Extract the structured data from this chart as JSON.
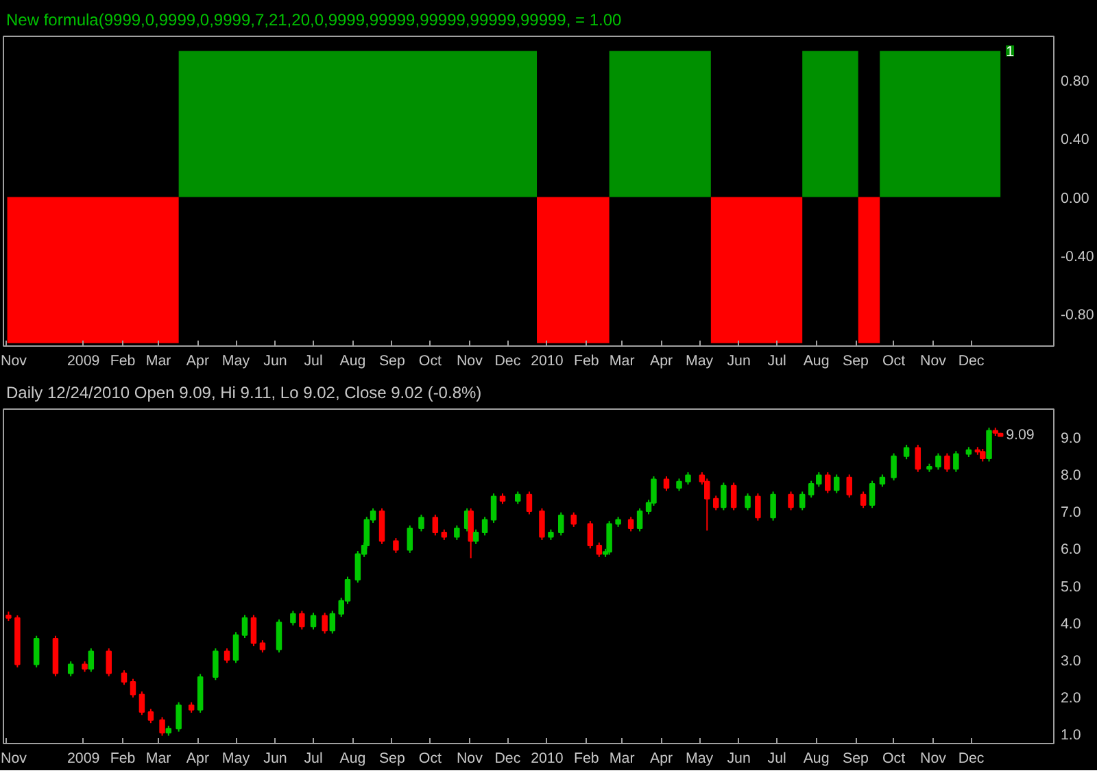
{
  "chart_data": [
    {
      "type": "area",
      "title": "New formula(9999,0,9999,0,9999,7,21,20,0,9999,99999,99999,99999,99999, = 1.00",
      "series": [
        {
          "color": "#009000",
          "x": [
            "2008-11-02",
            "2009-03-17",
            "2009-03-17",
            "2009-12-24",
            "2009-12-24",
            "2010-02-19",
            "2010-02-19",
            "2010-05-10",
            "2010-05-10",
            "2010-07-21",
            "2010-07-21",
            "2010-09-03",
            "2010-09-03",
            "2010-09-20",
            "2010-09-20",
            "2010-12-24"
          ],
          "values": [
            0,
            0,
            1,
            1,
            0,
            0,
            1,
            1,
            0,
            0,
            1,
            1,
            0,
            0,
            1,
            1
          ]
        },
        {
          "color": "#ff0000",
          "x": [
            "2008-11-02",
            "2009-03-17",
            "2009-03-17",
            "2009-12-24",
            "2009-12-24",
            "2010-02-19",
            "2010-02-19",
            "2010-05-10",
            "2010-05-10",
            "2010-07-21",
            "2010-07-21",
            "2010-09-03",
            "2010-09-03",
            "2010-09-20",
            "2010-09-20",
            "2010-12-24"
          ],
          "values": [
            -1,
            -1,
            0,
            0,
            -1,
            -1,
            0,
            0,
            -1,
            -1,
            0,
            0,
            -1,
            -1,
            0,
            0
          ]
        }
      ],
      "xlim": [
        "2008-10-30",
        "2011-02-04"
      ],
      "xticks": [
        {
          "value": "2008-11-01",
          "label": "Nov"
        },
        {
          "value": "2009-01-01",
          "label": "2009"
        },
        {
          "value": "2009-02-01",
          "label": "Feb"
        },
        {
          "value": "2009-03-01",
          "label": "Mar"
        },
        {
          "value": "2009-04-01",
          "label": "Apr"
        },
        {
          "value": "2009-05-01",
          "label": "May"
        },
        {
          "value": "2009-06-01",
          "label": "Jun"
        },
        {
          "value": "2009-07-01",
          "label": "Jul"
        },
        {
          "value": "2009-08-01",
          "label": "Aug"
        },
        {
          "value": "2009-09-01",
          "label": "Sep"
        },
        {
          "value": "2009-10-01",
          "label": "Oct"
        },
        {
          "value": "2009-11-01",
          "label": "Nov"
        },
        {
          "value": "2009-12-01",
          "label": "Dec"
        },
        {
          "value": "2010-01-01",
          "label": "2010"
        },
        {
          "value": "2010-02-01",
          "label": "Feb"
        },
        {
          "value": "2010-03-01",
          "label": "Mar"
        },
        {
          "value": "2010-04-01",
          "label": "Apr"
        },
        {
          "value": "2010-05-01",
          "label": "May"
        },
        {
          "value": "2010-06-01",
          "label": "Jun"
        },
        {
          "value": "2010-07-01",
          "label": "Jul"
        },
        {
          "value": "2010-08-01",
          "label": "Aug"
        },
        {
          "value": "2010-09-01",
          "label": "Sep"
        },
        {
          "value": "2010-10-01",
          "label": "Oct"
        },
        {
          "value": "2010-11-01",
          "label": "Nov"
        },
        {
          "value": "2010-12-01",
          "label": "Dec"
        }
      ],
      "ylim": [
        -1.02,
        1.1
      ],
      "yticks": [
        {
          "value": 0.8,
          "label": "0.80"
        },
        {
          "value": 0.4,
          "label": "0.40"
        },
        {
          "value": 0,
          "label": "0.00"
        },
        {
          "value": -0.4,
          "label": "-0.40"
        },
        {
          "value": -0.8,
          "label": "-0.80"
        }
      ],
      "annotations": [
        {
          "text": "1",
          "x": "2010-12-24",
          "y": 1
        }
      ],
      "grid": false
    },
    {
      "type": "candlestick",
      "title": "Daily 12/24/2010 Open 9.09, Hi 9.11, Lo 9.02, Close 9.02 (-0.8%)",
      "x": [
        "2008-11-03",
        "2008-11-10",
        "2008-11-25",
        "2008-12-10",
        "2008-12-22",
        "2009-01-02",
        "2009-01-07",
        "2009-01-21",
        "2009-02-02",
        "2009-02-09",
        "2009-02-16",
        "2009-02-23",
        "2009-03-04",
        "2009-03-09",
        "2009-03-17",
        "2009-03-27",
        "2009-04-03",
        "2009-04-15",
        "2009-04-24",
        "2009-05-01",
        "2009-05-08",
        "2009-05-15",
        "2009-05-22",
        "2009-06-04",
        "2009-06-15",
        "2009-06-22",
        "2009-07-01",
        "2009-07-10",
        "2009-07-16",
        "2009-07-23",
        "2009-07-28",
        "2009-08-05",
        "2009-08-10",
        "2009-08-12",
        "2009-08-17",
        "2009-08-24",
        "2009-09-04",
        "2009-09-15",
        "2009-09-24",
        "2009-10-05",
        "2009-10-12",
        "2009-10-22",
        "2009-10-30",
        "2009-11-02",
        "2009-11-06",
        "2009-11-13",
        "2009-11-20",
        "2009-11-27",
        "2009-12-09",
        "2009-12-18",
        "2009-12-28",
        "2010-01-04",
        "2010-01-12",
        "2010-01-22",
        "2010-02-04",
        "2010-02-11",
        "2010-02-16",
        "2010-02-19",
        "2010-02-26",
        "2010-03-08",
        "2010-03-15",
        "2010-03-22",
        "2010-03-26",
        "2010-04-05",
        "2010-04-15",
        "2010-04-22",
        "2010-05-03",
        "2010-05-07",
        "2010-05-14",
        "2010-05-20",
        "2010-05-28",
        "2010-06-08",
        "2010-06-16",
        "2010-06-28",
        "2010-07-12",
        "2010-07-21",
        "2010-07-28",
        "2010-08-03",
        "2010-08-10",
        "2010-08-17",
        "2010-08-27",
        "2010-09-07",
        "2010-09-14",
        "2010-09-22",
        "2010-10-01",
        "2010-10-11",
        "2010-10-20",
        "2010-10-29",
        "2010-11-05",
        "2010-11-12",
        "2010-11-19",
        "2010-11-29",
        "2010-12-06",
        "2010-12-10",
        "2010-12-15",
        "2010-12-20",
        "2010-12-24"
      ],
      "ohlc": [
        [
          4.2,
          4.3,
          4.05,
          4.13
        ],
        [
          4.13,
          4.2,
          2.8,
          2.88
        ],
        [
          2.88,
          3.65,
          2.8,
          3.57
        ],
        [
          3.57,
          3.65,
          2.56,
          2.64
        ],
        [
          2.64,
          2.96,
          2.56,
          2.88
        ],
        [
          2.88,
          2.96,
          2.68,
          2.76
        ],
        [
          2.76,
          3.31,
          2.68,
          3.23
        ],
        [
          3.23,
          3.31,
          2.56,
          2.64
        ],
        [
          2.64,
          2.72,
          2.33,
          2.41
        ],
        [
          2.41,
          2.49,
          1.99,
          2.07
        ],
        [
          2.07,
          2.15,
          1.52,
          1.6
        ],
        [
          1.6,
          1.68,
          1.3,
          1.38
        ],
        [
          1.38,
          1.46,
          0.96,
          1.04
        ],
        [
          1.04,
          1.23,
          0.96,
          1.15
        ],
        [
          1.15,
          1.86,
          1.07,
          1.78
        ],
        [
          1.78,
          1.86,
          1.58,
          1.66
        ],
        [
          1.66,
          2.62,
          1.58,
          2.54
        ],
        [
          2.54,
          3.31,
          2.46,
          3.23
        ],
        [
          3.23,
          3.31,
          2.92,
          3.0
        ],
        [
          3.0,
          3.75,
          2.92,
          3.67
        ],
        [
          3.67,
          4.21,
          3.59,
          4.13
        ],
        [
          4.13,
          4.21,
          3.37,
          3.45
        ],
        [
          3.45,
          3.53,
          3.2,
          3.28
        ],
        [
          3.28,
          4.09,
          3.2,
          4.01
        ],
        [
          4.01,
          4.32,
          3.93,
          4.24
        ],
        [
          4.24,
          4.32,
          3.82,
          3.9
        ],
        [
          3.9,
          4.27,
          3.82,
          4.19
        ],
        [
          4.19,
          4.27,
          3.71,
          3.79
        ],
        [
          3.79,
          4.32,
          3.71,
          4.24
        ],
        [
          4.24,
          4.67,
          4.16,
          4.59
        ],
        [
          4.59,
          5.24,
          4.51,
          5.16
        ],
        [
          5.16,
          5.93,
          5.08,
          5.85
        ],
        [
          5.85,
          6.16,
          5.77,
          6.08
        ],
        [
          6.08,
          6.85,
          6.0,
          6.77
        ],
        [
          6.77,
          7.08,
          6.69,
          7.0
        ],
        [
          7.0,
          7.08,
          6.12,
          6.2
        ],
        [
          6.2,
          6.28,
          5.88,
          5.96
        ],
        [
          5.96,
          6.62,
          5.88,
          6.54
        ],
        [
          6.54,
          6.91,
          6.46,
          6.83
        ],
        [
          6.83,
          6.91,
          6.35,
          6.43
        ],
        [
          6.43,
          6.51,
          6.23,
          6.31
        ],
        [
          6.31,
          6.62,
          6.23,
          6.54
        ],
        [
          6.54,
          7.08,
          6.46,
          7.0
        ],
        [
          7.0,
          7.08,
          5.74,
          6.2
        ],
        [
          6.2,
          6.51,
          6.12,
          6.43
        ],
        [
          6.43,
          6.85,
          6.35,
          6.77
        ],
        [
          6.77,
          7.48,
          6.69,
          7.4
        ],
        [
          7.4,
          7.48,
          7.2,
          7.28
        ],
        [
          7.28,
          7.53,
          7.2,
          7.45
        ],
        [
          7.45,
          7.53,
          6.92,
          7.0
        ],
        [
          7.0,
          7.08,
          6.23,
          6.31
        ],
        [
          6.31,
          6.51,
          6.23,
          6.43
        ],
        [
          6.43,
          6.97,
          6.35,
          6.89
        ],
        [
          6.89,
          6.97,
          6.58,
          6.66
        ],
        [
          6.66,
          6.74,
          6.0,
          6.08
        ],
        [
          6.08,
          6.16,
          5.77,
          5.85
        ],
        [
          5.85,
          5.99,
          5.77,
          5.91
        ],
        [
          5.91,
          6.74,
          5.83,
          6.66
        ],
        [
          6.66,
          6.85,
          6.58,
          6.77
        ],
        [
          6.77,
          6.85,
          6.46,
          6.54
        ],
        [
          6.54,
          7.08,
          6.46,
          7.0
        ],
        [
          7.0,
          7.31,
          6.92,
          7.23
        ],
        [
          7.23,
          7.94,
          7.15,
          7.86
        ],
        [
          7.86,
          7.94,
          7.55,
          7.63
        ],
        [
          7.63,
          7.88,
          7.55,
          7.8
        ],
        [
          7.8,
          8.05,
          7.72,
          7.97
        ],
        [
          7.97,
          8.05,
          7.72,
          7.8
        ],
        [
          7.8,
          7.88,
          6.48,
          7.34
        ],
        [
          7.34,
          7.42,
          7.03,
          7.11
        ],
        [
          7.11,
          7.77,
          7.03,
          7.69
        ],
        [
          7.69,
          7.77,
          7.03,
          7.11
        ],
        [
          7.11,
          7.48,
          7.03,
          7.4
        ],
        [
          7.4,
          7.48,
          6.75,
          6.83
        ],
        [
          6.83,
          7.53,
          6.75,
          7.45
        ],
        [
          7.45,
          7.53,
          7.03,
          7.11
        ],
        [
          7.11,
          7.53,
          7.03,
          7.45
        ],
        [
          7.45,
          7.82,
          7.37,
          7.74
        ],
        [
          7.74,
          8.05,
          7.66,
          7.97
        ],
        [
          7.97,
          8.05,
          7.49,
          7.57
        ],
        [
          7.57,
          7.99,
          7.49,
          7.91
        ],
        [
          7.91,
          7.99,
          7.37,
          7.45
        ],
        [
          7.45,
          7.53,
          7.09,
          7.17
        ],
        [
          7.17,
          7.82,
          7.09,
          7.74
        ],
        [
          7.74,
          7.99,
          7.66,
          7.91
        ],
        [
          7.91,
          8.56,
          7.83,
          8.48
        ],
        [
          8.48,
          8.79,
          8.4,
          8.71
        ],
        [
          8.71,
          8.79,
          8.06,
          8.14
        ],
        [
          8.14,
          8.28,
          8.06,
          8.2
        ],
        [
          8.2,
          8.56,
          8.12,
          8.48
        ],
        [
          8.48,
          8.56,
          8.06,
          8.14
        ],
        [
          8.14,
          8.62,
          8.06,
          8.54
        ],
        [
          8.54,
          8.73,
          8.46,
          8.65
        ],
        [
          8.65,
          8.73,
          8.52,
          8.6
        ],
        [
          8.6,
          8.68,
          8.34,
          8.42
        ],
        [
          8.42,
          9.25,
          8.34,
          9.17
        ],
        [
          9.17,
          9.25,
          9.03,
          9.11
        ],
        [
          9.09,
          9.11,
          9.02,
          9.02
        ]
      ],
      "colors": [
        "#ff0000",
        "#ff0000",
        "#00c800",
        "#ff0000",
        "#00c800",
        "#ff0000",
        "#00c800",
        "#ff0000",
        "#ff0000",
        "#ff0000",
        "#ff0000",
        "#ff0000",
        "#ff0000",
        "#00c800",
        "#00c800",
        "#ff0000",
        "#00c800",
        "#00c800",
        "#ff0000",
        "#00c800",
        "#00c800",
        "#ff0000",
        "#ff0000",
        "#00c800",
        "#00c800",
        "#ff0000",
        "#00c800",
        "#ff0000",
        "#00c800",
        "#00c800",
        "#00c800",
        "#00c800",
        "#00c800",
        "#00c800",
        "#00c800",
        "#ff0000",
        "#ff0000",
        "#00c800",
        "#00c800",
        "#ff0000",
        "#ff0000",
        "#00c800",
        "#00c800",
        "#ff0000",
        "#00c800",
        "#00c800",
        "#00c800",
        "#ff0000",
        "#00c800",
        "#ff0000",
        "#ff0000",
        "#00c800",
        "#00c800",
        "#ff0000",
        "#ff0000",
        "#ff0000",
        "#00c800",
        "#00c800",
        "#00c800",
        "#ff0000",
        "#00c800",
        "#00c800",
        "#00c800",
        "#ff0000",
        "#00c800",
        "#00c800",
        "#ff0000",
        "#ff0000",
        "#ff0000",
        "#00c800",
        "#ff0000",
        "#00c800",
        "#ff0000",
        "#00c800",
        "#ff0000",
        "#00c800",
        "#00c800",
        "#00c800",
        "#ff0000",
        "#00c800",
        "#ff0000",
        "#ff0000",
        "#00c800",
        "#00c800",
        "#00c800",
        "#00c800",
        "#ff0000",
        "#00c800",
        "#00c800",
        "#ff0000",
        "#00c800",
        "#00c800",
        "#ff0000",
        "#ff0000",
        "#00c800",
        "#ff0000",
        "#ff0000"
      ],
      "xlim": [
        "2008-10-30",
        "2011-02-04"
      ],
      "xticks": [
        {
          "value": "2008-11-01",
          "label": "Nov"
        },
        {
          "value": "2009-01-01",
          "label": "2009"
        },
        {
          "value": "2009-02-01",
          "label": "Feb"
        },
        {
          "value": "2009-03-01",
          "label": "Mar"
        },
        {
          "value": "2009-04-01",
          "label": "Apr"
        },
        {
          "value": "2009-05-01",
          "label": "May"
        },
        {
          "value": "2009-06-01",
          "label": "Jun"
        },
        {
          "value": "2009-07-01",
          "label": "Jul"
        },
        {
          "value": "2009-08-01",
          "label": "Aug"
        },
        {
          "value": "2009-09-01",
          "label": "Sep"
        },
        {
          "value": "2009-10-01",
          "label": "Oct"
        },
        {
          "value": "2009-11-01",
          "label": "Nov"
        },
        {
          "value": "2009-12-01",
          "label": "Dec"
        },
        {
          "value": "2010-01-01",
          "label": "2010"
        },
        {
          "value": "2010-02-01",
          "label": "Feb"
        },
        {
          "value": "2010-03-01",
          "label": "Mar"
        },
        {
          "value": "2010-04-01",
          "label": "Apr"
        },
        {
          "value": "2010-05-01",
          "label": "May"
        },
        {
          "value": "2010-06-01",
          "label": "Jun"
        },
        {
          "value": "2010-07-01",
          "label": "Jul"
        },
        {
          "value": "2010-08-01",
          "label": "Aug"
        },
        {
          "value": "2010-09-01",
          "label": "Sep"
        },
        {
          "value": "2010-10-01",
          "label": "Oct"
        },
        {
          "value": "2010-11-01",
          "label": "Nov"
        },
        {
          "value": "2010-12-01",
          "label": "Dec"
        }
      ],
      "ylim": [
        0.75,
        9.75
      ],
      "yticks": [
        {
          "value": 1,
          "label": "1.0"
        },
        {
          "value": 2,
          "label": "2.0"
        },
        {
          "value": 3,
          "label": "3.0"
        },
        {
          "value": 4,
          "label": "4.0"
        },
        {
          "value": 5,
          "label": "5.0"
        },
        {
          "value": 6,
          "label": "6.0"
        },
        {
          "value": 7,
          "label": "7.0"
        },
        {
          "value": 8,
          "label": "8.0"
        },
        {
          "value": 9,
          "label": "9.0"
        }
      ],
      "annotations": [
        {
          "text": "9.09",
          "x": "2010-12-24",
          "y": 9.09
        }
      ],
      "grid": false
    }
  ]
}
